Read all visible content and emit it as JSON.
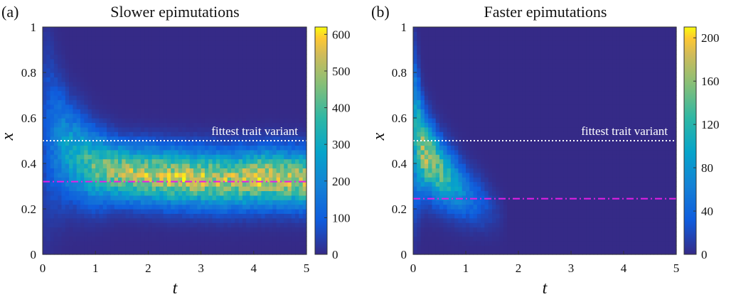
{
  "chart_data": [
    {
      "type": "heatmap",
      "panel_label": "(a)",
      "title": "Slower epimutations",
      "xlabel": "t",
      "ylabel": "x",
      "xlim": [
        0,
        5
      ],
      "ylim": [
        0,
        1
      ],
      "x_ticks": [
        "0",
        "1",
        "2",
        "3",
        "4",
        "5"
      ],
      "y_ticks": [
        "0",
        "0.2",
        "0.4",
        "0.6",
        "0.8",
        "1"
      ],
      "colorbar": {
        "min": 0,
        "max": 620,
        "ticks": [
          "0",
          "100",
          "200",
          "300",
          "400",
          "500",
          "600"
        ]
      },
      "reference_lines": [
        {
          "label": "fittest trait variant",
          "y": 0.5,
          "style": "dotted",
          "color": "#ffffff"
        },
        {
          "label": "",
          "y": 0.32,
          "style": "dash-dot",
          "color": "#e61ee6"
        }
      ],
      "density_band": [
        {
          "t": 0,
          "mean": 0.55,
          "sd": 0.28,
          "peak": 60
        },
        {
          "t": 0.25,
          "mean": 0.5,
          "sd": 0.18,
          "peak": 180
        },
        {
          "t": 0.5,
          "mean": 0.45,
          "sd": 0.13,
          "peak": 290
        },
        {
          "t": 1,
          "mean": 0.38,
          "sd": 0.1,
          "peak": 420
        },
        {
          "t": 1.5,
          "mean": 0.36,
          "sd": 0.08,
          "peak": 500
        },
        {
          "t": 2.5,
          "mean": 0.34,
          "sd": 0.08,
          "peak": 530
        },
        {
          "t": 3.5,
          "mean": 0.33,
          "sd": 0.08,
          "peak": 500
        },
        {
          "t": 4.3,
          "mean": 0.34,
          "sd": 0.08,
          "peak": 560
        },
        {
          "t": 5,
          "mean": 0.33,
          "sd": 0.08,
          "peak": 500
        }
      ]
    },
    {
      "type": "heatmap",
      "panel_label": "(b)",
      "title": "Faster epimutations",
      "xlabel": "t",
      "ylabel": "x",
      "xlim": [
        0,
        5
      ],
      "ylim": [
        0,
        1
      ],
      "x_ticks": [
        "0",
        "1",
        "2",
        "3",
        "4",
        "5"
      ],
      "y_ticks": [
        "0",
        "0.2",
        "0.4",
        "0.6",
        "0.8",
        "1"
      ],
      "colorbar": {
        "min": 0,
        "max": 210,
        "ticks": [
          "0",
          "40",
          "80",
          "120",
          "160",
          "200"
        ]
      },
      "reference_lines": [
        {
          "label": "fittest trait variant",
          "y": 0.5,
          "style": "dotted",
          "color": "#ffffff"
        },
        {
          "label": "",
          "y": 0.245,
          "style": "dash-dot",
          "color": "#e61ee6"
        }
      ],
      "density_band": [
        {
          "t": 0,
          "mean": 0.55,
          "sd": 0.22,
          "peak": 90
        },
        {
          "t": 0.2,
          "mean": 0.45,
          "sd": 0.11,
          "peak": 170
        },
        {
          "t": 0.5,
          "mean": 0.37,
          "sd": 0.09,
          "peak": 150
        },
        {
          "t": 1,
          "mean": 0.27,
          "sd": 0.08,
          "peak": 60
        },
        {
          "t": 1.5,
          "mean": 0.2,
          "sd": 0.07,
          "peak": 15
        },
        {
          "t": 1.8,
          "mean": 0.17,
          "sd": 0.06,
          "peak": 0
        },
        {
          "t": 5,
          "mean": 0.17,
          "sd": 0.06,
          "peak": 0
        }
      ]
    }
  ]
}
